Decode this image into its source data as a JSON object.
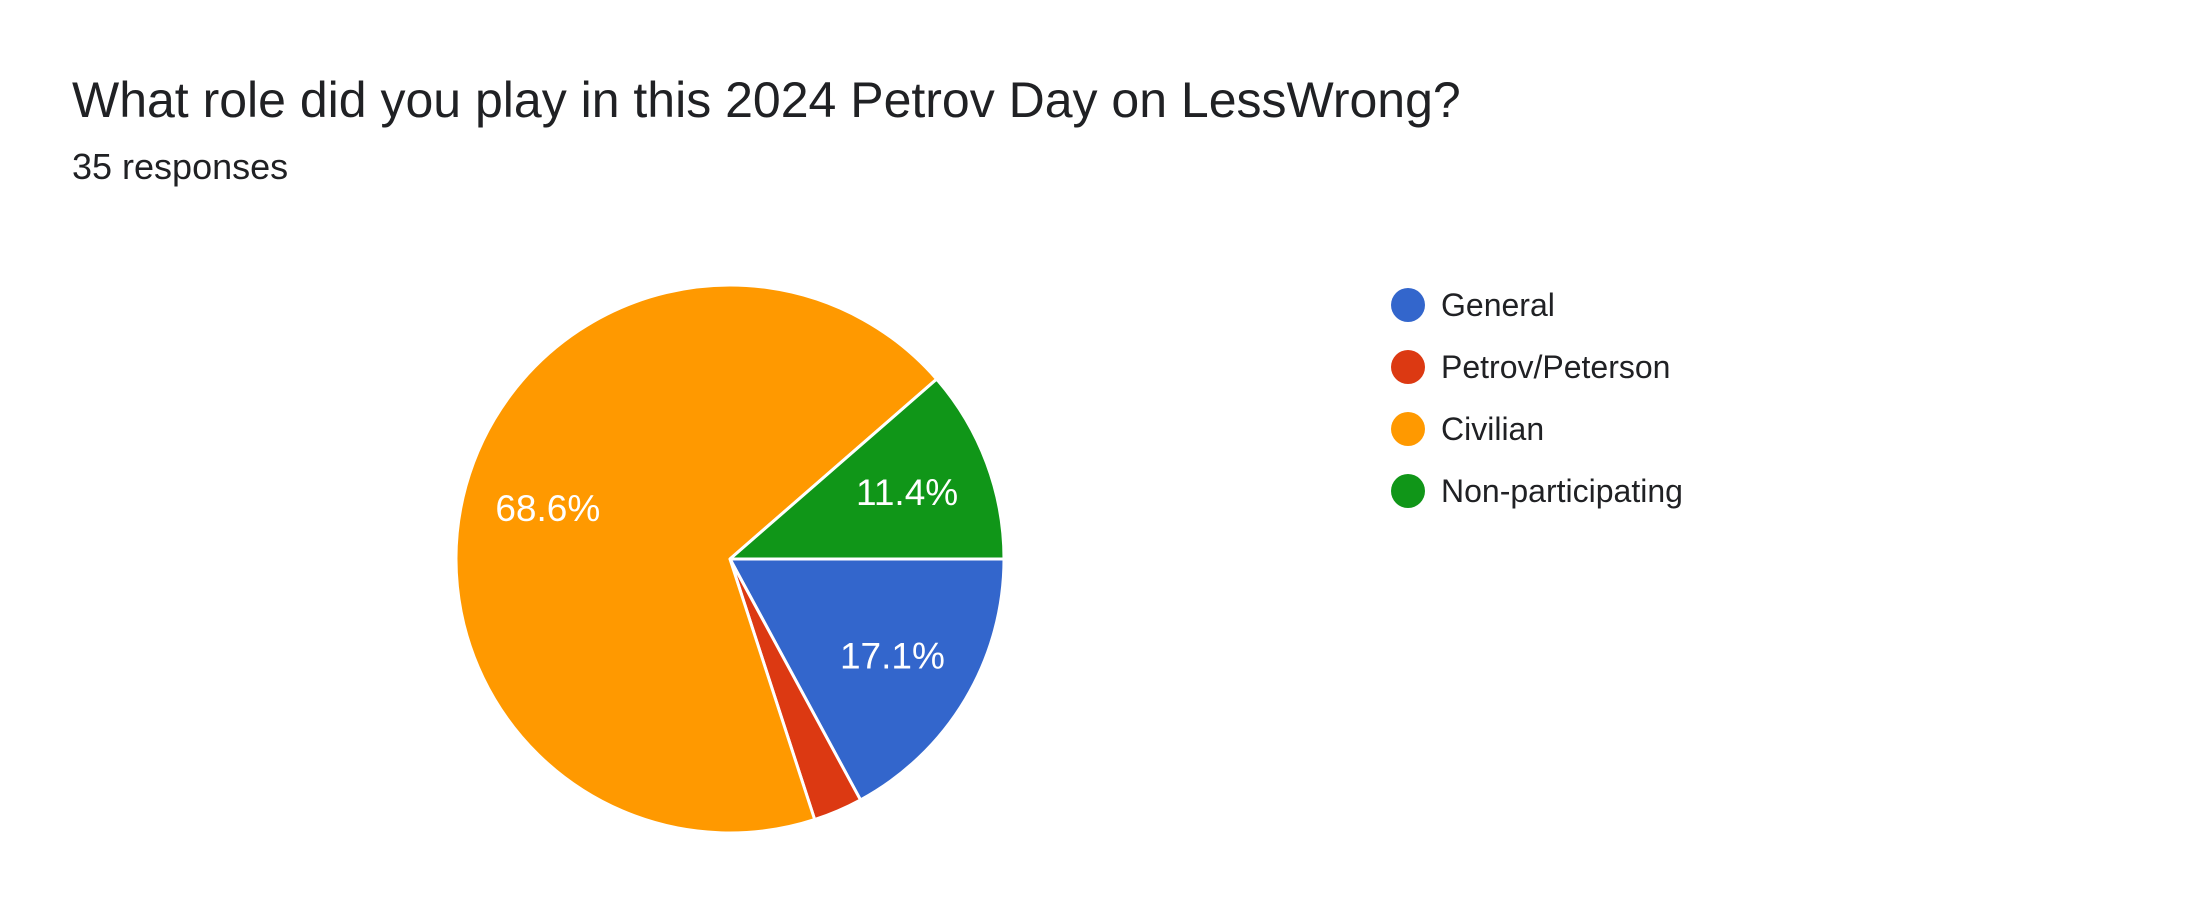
{
  "header": {
    "title": "What role did you play in this 2024 Petrov Day on LessWrong?",
    "subtitle": "35 responses"
  },
  "legend": {
    "items": [
      {
        "label": "General",
        "color": "#3366CC"
      },
      {
        "label": "Petrov/Peterson",
        "color": "#DC3912"
      },
      {
        "label": "Civilian",
        "color": "#FF9900"
      },
      {
        "label": "Non-participating",
        "color": "#109618"
      }
    ]
  },
  "chart_data": {
    "type": "pie",
    "title": "What role did you play in this 2024 Petrov Day on LessWrong?",
    "subtitle": "35 responses",
    "categories": [
      "General",
      "Petrov/Peterson",
      "Civilian",
      "Non-participating"
    ],
    "values": [
      17.1,
      2.9,
      68.6,
      11.4
    ],
    "unit": "percent",
    "slice_labels": [
      "17.1%",
      "",
      "68.6%",
      "11.4%"
    ],
    "colors": [
      "#3366CC",
      "#DC3912",
      "#FF9900",
      "#109618"
    ],
    "start_angle_deg": 90,
    "direction": "clockwise",
    "legend_position": "right",
    "slice_border_color": "#ffffff",
    "slice_label_color": "#ffffff",
    "background": "#ffffff",
    "text_color": "#202124"
  }
}
